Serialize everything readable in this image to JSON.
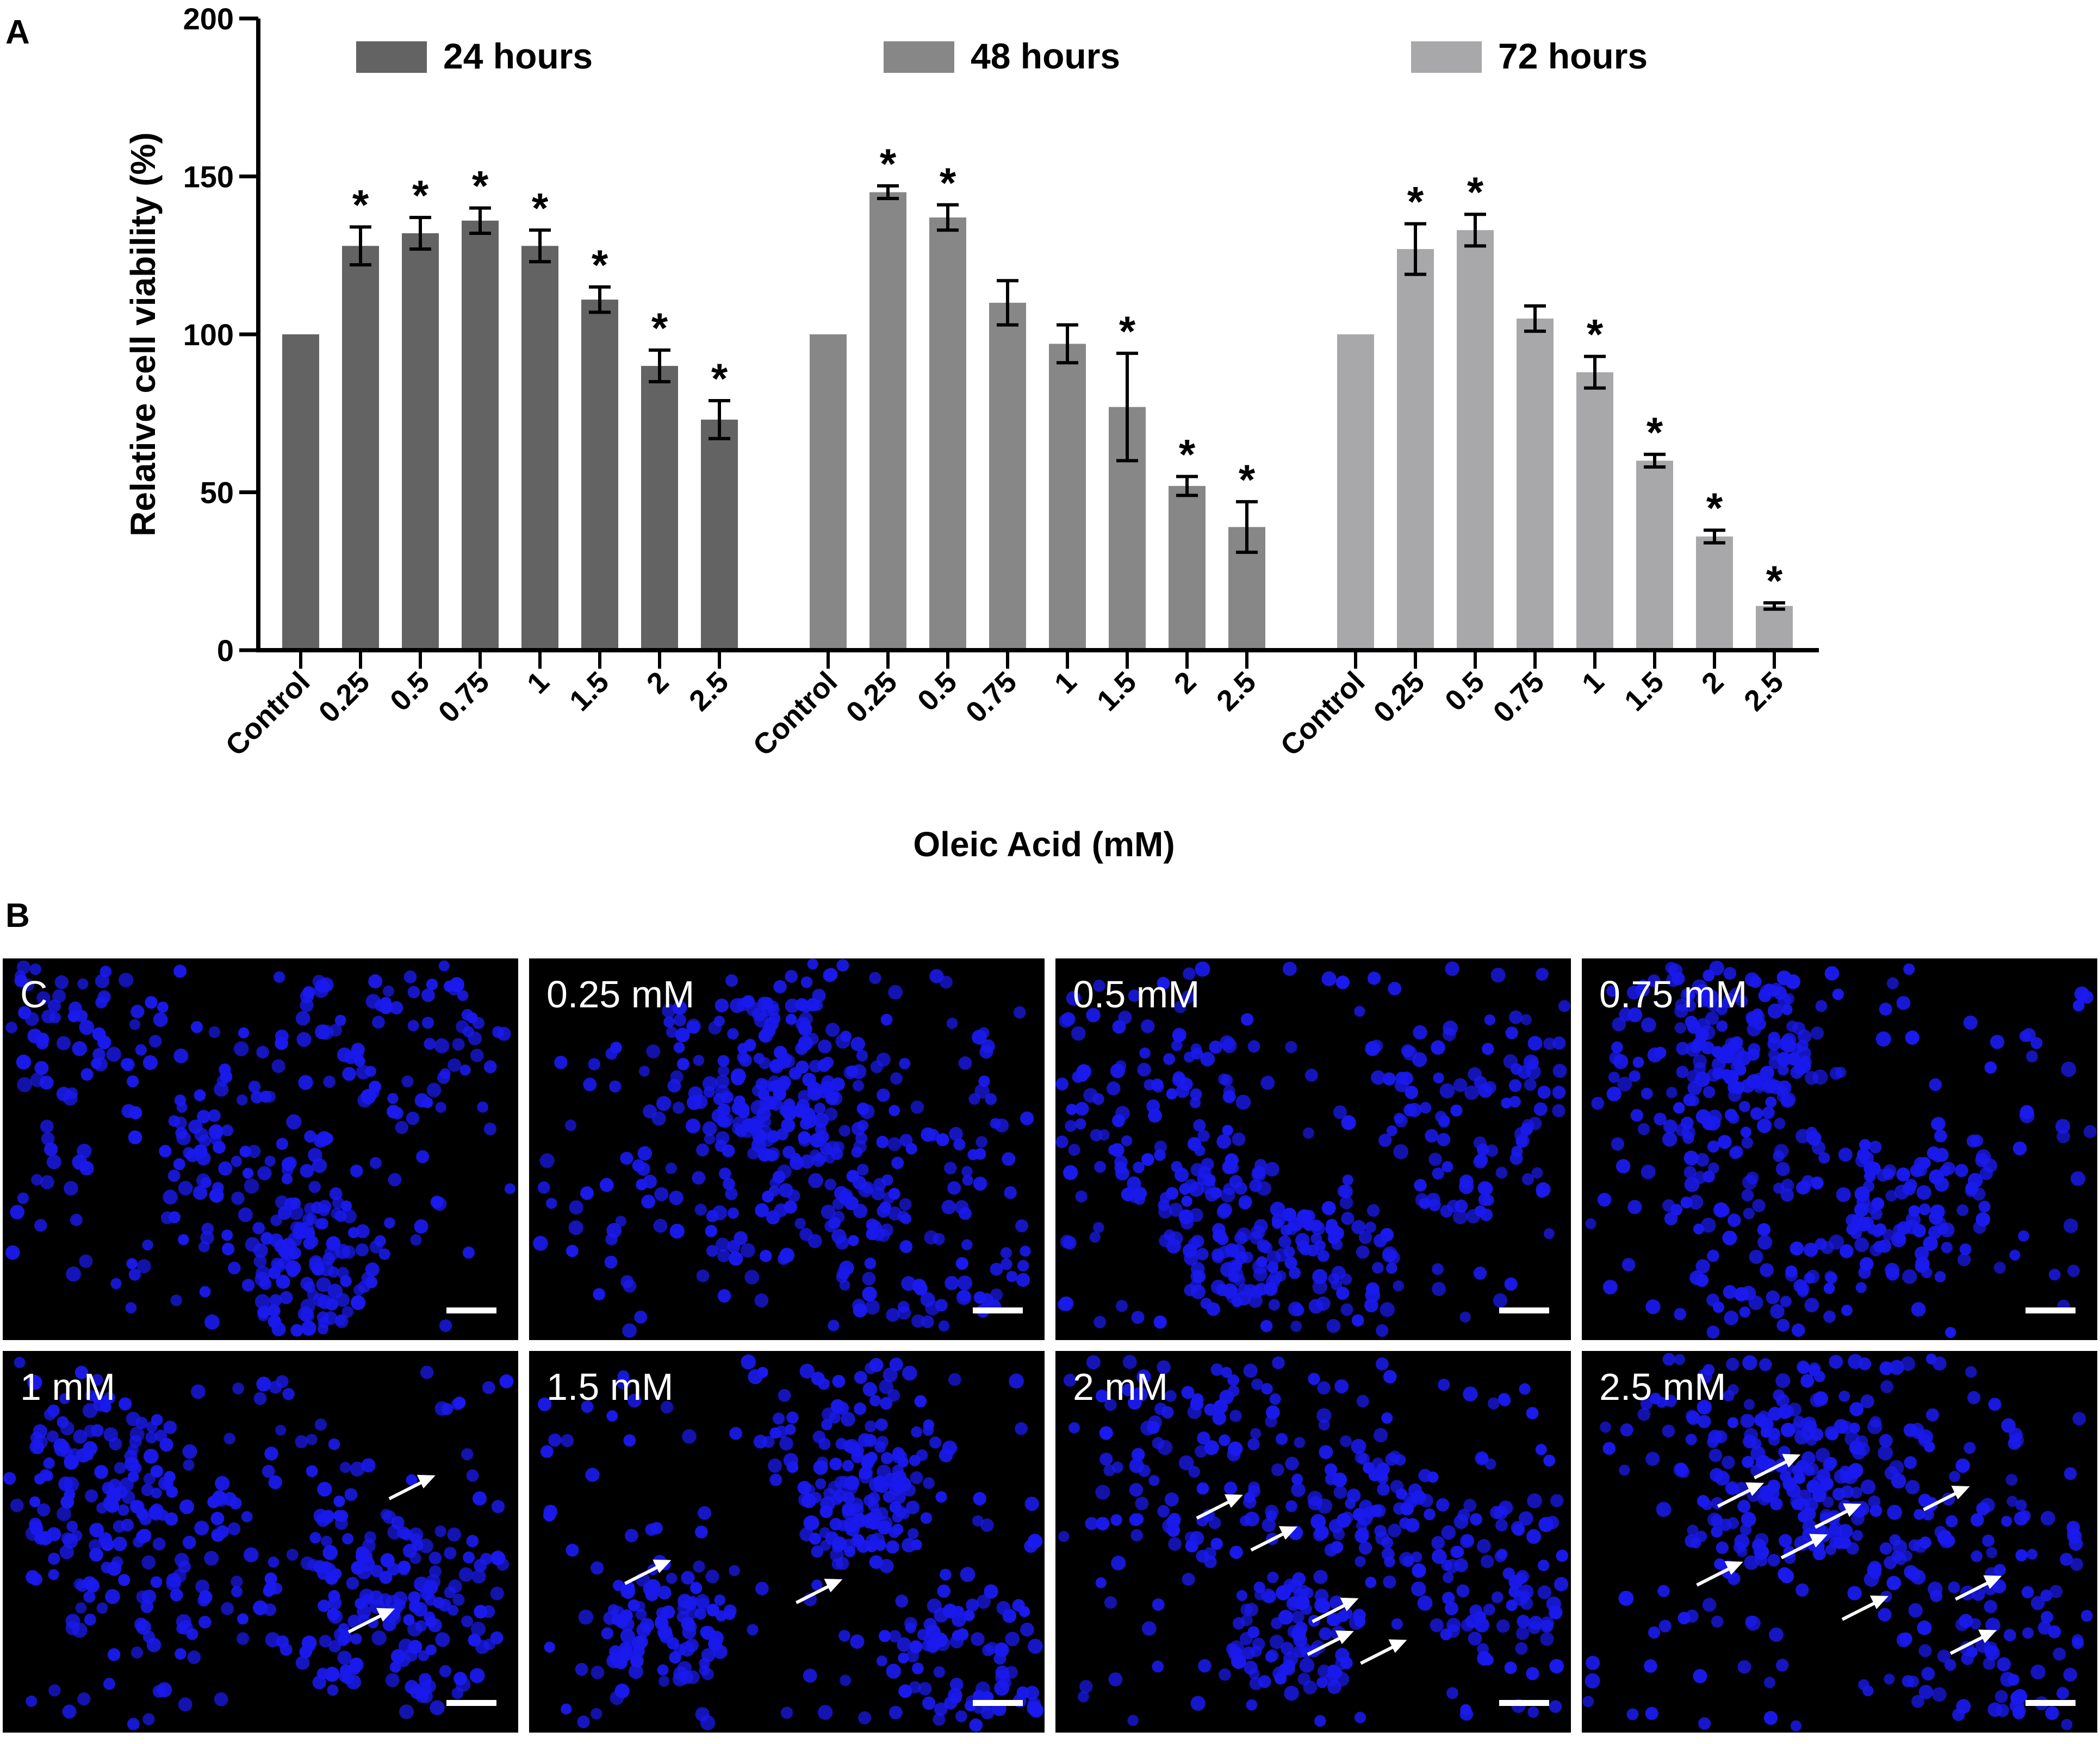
{
  "panel_a": {
    "label": "A"
  },
  "panel_b": {
    "label": "B"
  },
  "chart_data": {
    "type": "bar",
    "xlabel": "Oleic Acid (mM)",
    "ylabel": "Relative cell viability (%)",
    "ylim": [
      0,
      200
    ],
    "yticks": [
      0,
      50,
      100,
      150,
      200
    ],
    "grid": false,
    "legend_position": "top",
    "categories": [
      "Control",
      "0.25",
      "0.5",
      "0.75",
      "1",
      "1.5",
      "2",
      "2.5"
    ],
    "significance_marker": "*",
    "series": [
      {
        "name": "24 hours",
        "color": "#636363",
        "values": [
          100,
          128,
          132,
          136,
          128,
          111,
          90,
          73
        ],
        "errors": [
          0,
          6,
          5,
          4,
          5,
          4,
          5,
          6
        ],
        "significant": [
          false,
          true,
          true,
          true,
          true,
          true,
          true,
          true
        ]
      },
      {
        "name": "48 hours",
        "color": "#878787",
        "values": [
          100,
          145,
          137,
          110,
          97,
          77,
          52,
          39
        ],
        "errors": [
          0,
          2,
          4,
          7,
          6,
          17,
          3,
          8
        ],
        "significant": [
          false,
          true,
          true,
          false,
          false,
          true,
          true,
          true
        ]
      },
      {
        "name": "72 hours",
        "color": "#a8a8aa",
        "values": [
          100,
          127,
          133,
          105,
          88,
          60,
          36,
          14
        ],
        "errors": [
          0,
          8,
          5,
          4,
          5,
          2,
          2,
          1
        ],
        "significant": [
          false,
          true,
          true,
          false,
          true,
          true,
          true,
          true
        ]
      }
    ]
  },
  "micrographs": {
    "background": "#000000",
    "nucleus_color": "#1a1aee",
    "panels": [
      {
        "label": "C",
        "arrows": 0
      },
      {
        "label": "0.25 mM",
        "arrows": 0
      },
      {
        "label": "0.5 mM",
        "arrows": 0
      },
      {
        "label": "0.75 mM",
        "arrows": 0
      },
      {
        "label": "1 mM",
        "arrows": 2
      },
      {
        "label": "1.5 mM",
        "arrows": 2
      },
      {
        "label": "2 mM",
        "arrows": 5
      },
      {
        "label": "2.5 mM",
        "arrows": 9
      }
    ]
  }
}
